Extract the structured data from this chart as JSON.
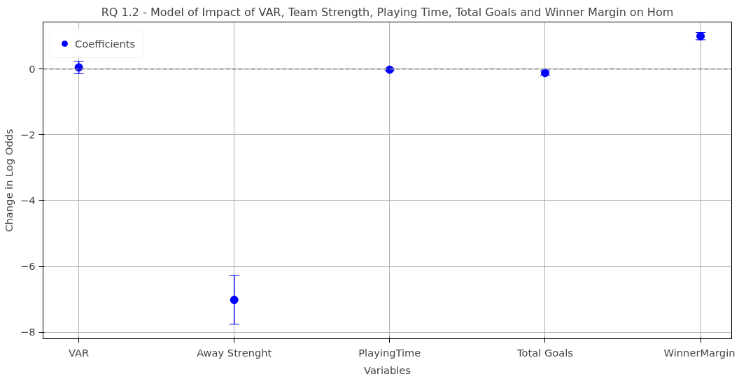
{
  "chart_data": {
    "type": "scatter",
    "title": "RQ 1.2 - Model of Impact of VAR, Team Strength, Playing Time, Total Goals and Winner Margin on Hom",
    "xlabel": "Variables",
    "ylabel": "Change in Log Odds",
    "categories": [
      "VAR",
      "Away Strenght",
      "PlayingTime",
      "Total Goals",
      "WinnerMargin"
    ],
    "series": [
      {
        "name": "Coefficients",
        "color": "#0000ff",
        "values": [
          0.05,
          -7.02,
          -0.02,
          -0.12,
          1.0
        ],
        "errors": [
          0.19,
          0.74,
          0.03,
          0.07,
          0.11
        ]
      }
    ],
    "ylim": [
      -8.2,
      1.43
    ],
    "yticks": [
      -8,
      -6,
      -4,
      -2,
      0
    ],
    "ref_lines": [
      {
        "axis": "y",
        "value": 0,
        "color": "#808080",
        "line_style": "dashed"
      }
    ],
    "grid": true,
    "legend": "top left",
    "marker": "circle"
  }
}
